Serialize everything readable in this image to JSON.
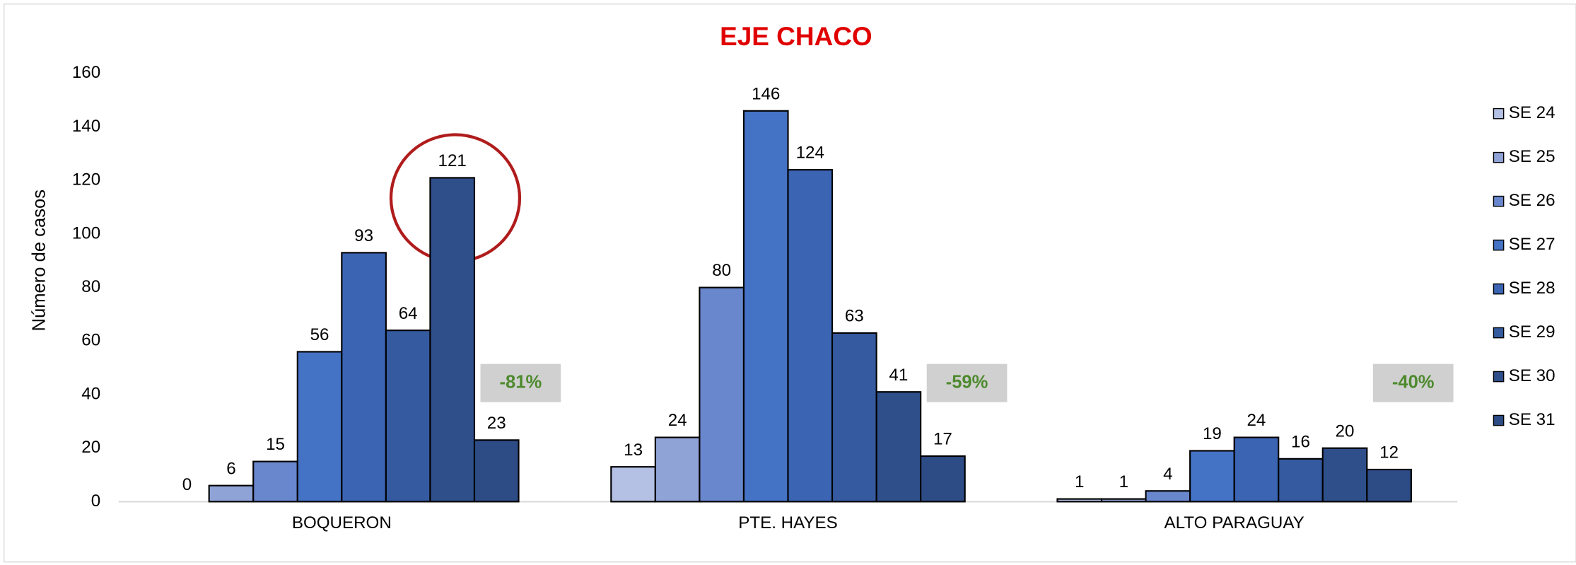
{
  "chart_data": {
    "type": "bar",
    "title": "EJE CHACO",
    "y_label": "Número de casos",
    "categories": [
      "BOQUERON",
      "PTE. HAYES",
      "ALTO PARAGUAY"
    ],
    "series": [
      {
        "name": "SE 24",
        "color": "#b4c0e4",
        "values": [
          0,
          13,
          1
        ]
      },
      {
        "name": "SE 25",
        "color": "#8fa3d6",
        "values": [
          6,
          24,
          1
        ]
      },
      {
        "name": "SE 26",
        "color": "#6987cc",
        "values": [
          15,
          80,
          4
        ]
      },
      {
        "name": "SE 27",
        "color": "#4472c4",
        "values": [
          56,
          146,
          19
        ]
      },
      {
        "name": "SE 28",
        "color": "#3b64b3",
        "values": [
          93,
          124,
          24
        ]
      },
      {
        "name": "SE 29",
        "color": "#355a9f",
        "values": [
          64,
          63,
          16
        ]
      },
      {
        "name": "SE 30",
        "color": "#2f4f8b",
        "values": [
          121,
          41,
          20
        ]
      },
      {
        "name": "SE 31",
        "color": "#2d4c85",
        "values": [
          23,
          17,
          12
        ]
      }
    ],
    "annotations": [
      "-81%",
      "-59%",
      "-40%"
    ],
    "ylim": [
      0,
      160
    ],
    "yticks": [
      0,
      20,
      40,
      60,
      80,
      100,
      120,
      140,
      160
    ],
    "legend": "right"
  }
}
